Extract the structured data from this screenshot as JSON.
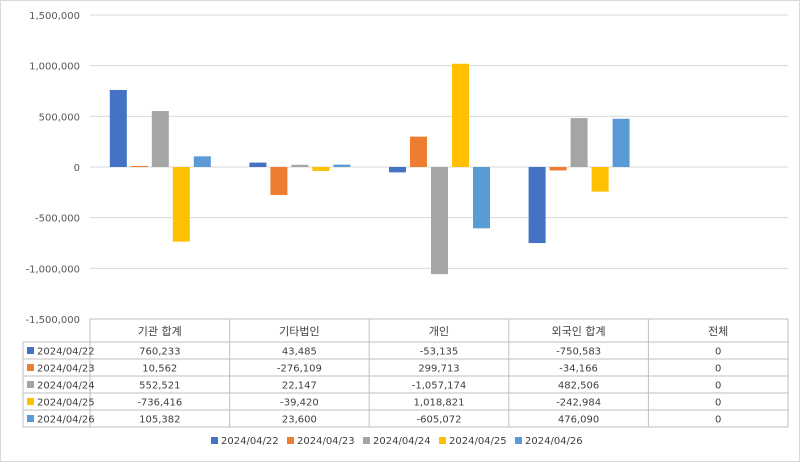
{
  "chart_data": {
    "type": "bar",
    "categories": [
      "기관 합계",
      "기타법인",
      "개인",
      "외국인 합계",
      "전체"
    ],
    "series": [
      {
        "name": "2024/04/22",
        "color": "#4472C4",
        "values": [
          760233,
          43485,
          -53135,
          -750583,
          0
        ],
        "labels": [
          "760,233",
          "43,485",
          "-53,135",
          "-750,583",
          "0"
        ]
      },
      {
        "name": "2024/04/23",
        "color": "#ED7D31",
        "values": [
          10562,
          -276109,
          299713,
          -34166,
          0
        ],
        "labels": [
          "10,562",
          "-276,109",
          "299,713",
          "-34,166",
          "0"
        ]
      },
      {
        "name": "2024/04/24",
        "color": "#A5A5A5",
        "values": [
          552521,
          22147,
          -1057174,
          482506,
          0
        ],
        "labels": [
          "552,521",
          "22,147",
          "-1,057,174",
          "482,506",
          "0"
        ]
      },
      {
        "name": "2024/04/25",
        "color": "#FFC000",
        "values": [
          -736416,
          -39420,
          1018821,
          -242984,
          0
        ],
        "labels": [
          "-736,416",
          "-39,420",
          "1,018,821",
          "-242,984",
          "0"
        ]
      },
      {
        "name": "2024/04/26",
        "color": "#5B9BD5",
        "values": [
          105382,
          23600,
          -605072,
          476090,
          0
        ],
        "labels": [
          "105,382",
          "23,600",
          "-605,072",
          "476,090",
          "0"
        ]
      }
    ],
    "yticks": [
      "1,500,000",
      "1,000,000",
      "500,000",
      "0",
      "-500,000",
      "-1,000,000",
      "-1,500,000"
    ],
    "ylim": [
      -1500000,
      1500000
    ],
    "title": "",
    "xlabel": "",
    "ylabel": "",
    "grid": true,
    "legend": "bottom",
    "data_table": true
  }
}
